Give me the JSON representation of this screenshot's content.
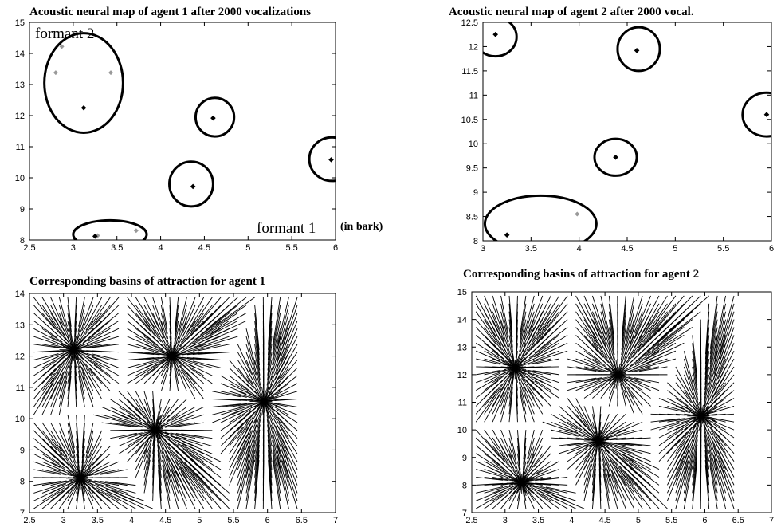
{
  "chart_data": [
    {
      "id": "map1",
      "type": "scatter",
      "title": "Acoustic neural map of agent 1 after 2000 vocalizations",
      "xlim": [
        2.5,
        6
      ],
      "ylim": [
        8,
        15
      ],
      "xticks": [
        "2.5",
        "3",
        "3.5",
        "4",
        "4.5",
        "5",
        "5.5",
        "6"
      ],
      "yticks": [
        "8",
        "9",
        "10",
        "11",
        "12",
        "13",
        "14",
        "15"
      ],
      "annotations": {
        "ylabel_note": "formant 2",
        "xlabel_note": "formant 1",
        "xlabel_unit": "(in bark)"
      },
      "points_dark": [
        [
          3.12,
          12.25
        ],
        [
          4.6,
          11.92
        ],
        [
          5.95,
          10.58
        ],
        [
          4.37,
          9.72
        ],
        [
          3.25,
          8.12
        ]
      ],
      "points_light": [
        [
          2.87,
          14.22
        ],
        [
          2.8,
          13.38
        ],
        [
          3.43,
          13.38
        ],
        [
          3.28,
          8.14
        ],
        [
          3.72,
          8.3
        ]
      ],
      "clusters": [
        {
          "cx": 3.12,
          "cy": 13.05,
          "rx": 0.45,
          "ry": 1.6
        },
        {
          "cx": 4.62,
          "cy": 11.95,
          "rx": 0.22,
          "ry": 0.62
        },
        {
          "cx": 5.96,
          "cy": 10.6,
          "rx": 0.26,
          "ry": 0.7
        },
        {
          "cx": 4.35,
          "cy": 9.8,
          "rx": 0.25,
          "ry": 0.72
        },
        {
          "cx": 3.42,
          "cy": 8.18,
          "rx": 0.42,
          "ry": 0.45
        }
      ]
    },
    {
      "id": "map2",
      "type": "scatter",
      "title": "Acoustic neural map of agent 2 after 2000 vocal.",
      "xlim": [
        3,
        6
      ],
      "ylim": [
        8,
        12.5
      ],
      "xticks": [
        "3",
        "3.5",
        "4",
        "4.5",
        "5",
        "5.5",
        "6"
      ],
      "yticks": [
        "8",
        "8.5",
        "9",
        "9.5",
        "10",
        "10.5",
        "11",
        "11.5",
        "12",
        "12.5"
      ],
      "points_dark": [
        [
          3.13,
          12.25
        ],
        [
          4.6,
          11.92
        ],
        [
          5.95,
          10.6
        ],
        [
          4.38,
          9.72
        ],
        [
          3.25,
          8.12
        ]
      ],
      "points_light": [
        [
          3.98,
          8.55
        ]
      ],
      "clusters": [
        {
          "cx": 3.13,
          "cy": 12.2,
          "rx": 0.22,
          "ry": 0.4
        },
        {
          "cx": 4.62,
          "cy": 11.95,
          "rx": 0.22,
          "ry": 0.45
        },
        {
          "cx": 5.95,
          "cy": 10.6,
          "rx": 0.25,
          "ry": 0.45
        },
        {
          "cx": 4.38,
          "cy": 9.72,
          "rx": 0.22,
          "ry": 0.38
        },
        {
          "cx": 3.6,
          "cy": 8.35,
          "rx": 0.58,
          "ry": 0.58
        }
      ]
    },
    {
      "id": "basins1",
      "type": "vector_field",
      "title": "Corresponding basins of attraction for agent 1",
      "xlim": [
        2.5,
        7
      ],
      "ylim": [
        7,
        14
      ],
      "xticks": [
        "2.5",
        "3",
        "3.5",
        "4",
        "4.5",
        "5",
        "5.5",
        "6",
        "6.5",
        "7"
      ],
      "yticks": [
        "7",
        "8",
        "9",
        "10",
        "11",
        "12",
        "13",
        "14"
      ],
      "attractors": [
        [
          3.15,
          12.2
        ],
        [
          4.6,
          12.0
        ],
        [
          5.95,
          10.55
        ],
        [
          4.35,
          9.65
        ],
        [
          3.25,
          8.1
        ]
      ]
    },
    {
      "id": "basins2",
      "type": "vector_field",
      "title": "Corresponding basins of attraction for agent 2",
      "xlim": [
        2.5,
        7
      ],
      "ylim": [
        7,
        15
      ],
      "xticks": [
        "2.5",
        "3",
        "3.5",
        "4",
        "4.5",
        "5",
        "5.5",
        "6",
        "6.5",
        "7"
      ],
      "yticks": [
        "7",
        "8",
        "9",
        "10",
        "11",
        "12",
        "13",
        "14",
        "15"
      ],
      "attractors": [
        [
          3.15,
          12.25
        ],
        [
          4.7,
          12.0
        ],
        [
          5.95,
          10.5
        ],
        [
          4.4,
          9.6
        ],
        [
          3.25,
          8.1
        ]
      ]
    }
  ]
}
